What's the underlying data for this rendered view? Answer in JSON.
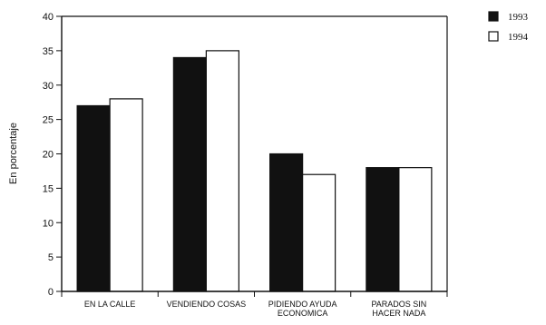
{
  "chart_data": {
    "type": "bar",
    "title": "",
    "xlabel": "",
    "ylabel": "En porcentaje",
    "ylim": [
      0,
      40
    ],
    "yticks": [
      0,
      5,
      10,
      15,
      20,
      25,
      30,
      35,
      40
    ],
    "grid": false,
    "legend_position": "top-right",
    "categories": [
      [
        "EN LA CALLE"
      ],
      [
        "VENDIENDO COSAS"
      ],
      [
        "PIDIENDO AYUDA",
        "ECONOMICA"
      ],
      [
        "PARADOS SIN",
        "HACER NADA"
      ]
    ],
    "series": [
      {
        "name": "1993",
        "values": [
          27,
          34,
          20,
          18
        ],
        "color": "#111111"
      },
      {
        "name": "1994",
        "values": [
          28,
          35,
          17,
          18
        ],
        "color": "#ffffff"
      }
    ]
  }
}
